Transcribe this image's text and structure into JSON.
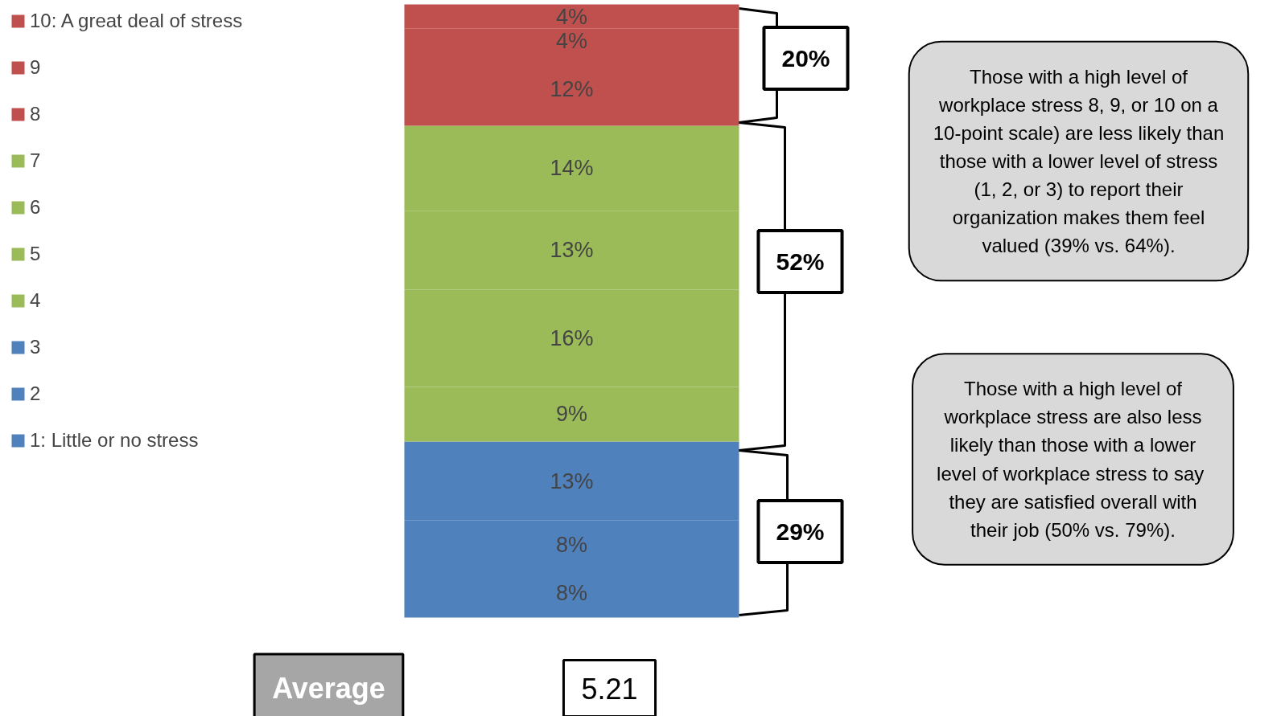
{
  "chart_data": {
    "type": "bar",
    "stacked": true,
    "categories": [
      null
    ],
    "legend": "top left",
    "grid": false,
    "tick_labels": false,
    "series": [
      {
        "name": "1: Little or no stress",
        "color": "#4f81bd",
        "values": [
          8
        ],
        "value_labels": [
          "8%"
        ]
      },
      {
        "name": "2",
        "color": "#4f81bd",
        "values": [
          8
        ],
        "value_labels": [
          "8%"
        ]
      },
      {
        "name": "3",
        "color": "#4f81bd",
        "values": [
          13
        ],
        "value_labels": [
          "13%"
        ]
      },
      {
        "name": "4",
        "color": "#9bbb59",
        "values": [
          9
        ],
        "value_labels": [
          "9%"
        ]
      },
      {
        "name": "5",
        "color": "#9bbb59",
        "values": [
          16
        ],
        "value_labels": [
          "16%"
        ]
      },
      {
        "name": "6",
        "color": "#9bbb59",
        "values": [
          13
        ],
        "value_labels": [
          "13%"
        ]
      },
      {
        "name": "7",
        "color": "#9bbb59",
        "values": [
          14
        ],
        "value_labels": [
          "14%"
        ]
      },
      {
        "name": "8",
        "color": "#c0504d",
        "values": [
          12
        ],
        "value_labels": [
          "12%"
        ]
      },
      {
        "name": "9",
        "color": "#c0504d",
        "values": [
          4
        ],
        "value_labels": [
          "4%"
        ]
      },
      {
        "name": "10: A great deal of stress",
        "color": "#c0504d",
        "values": [
          4
        ],
        "value_labels": [
          "4%"
        ]
      }
    ],
    "annotations": [
      "20%",
      "52%",
      "29%",
      "Those with a high level of\nworkplace stress 8, 9, or 10 on a\n10-point scale) are less likely than\nthose with a lower level of stress\n(1, 2, or 3) to report their\norganization makes them feel\nvalued (39% vs. 64%).",
      "Those with a high level of\nworkplace stress are also less\nlikely than those with a lower\nlevel of  workplace stress to say\nthey are satisfied overall with\ntheir job (50% vs. 79%).",
      "Average",
      "5.21"
    ]
  }
}
